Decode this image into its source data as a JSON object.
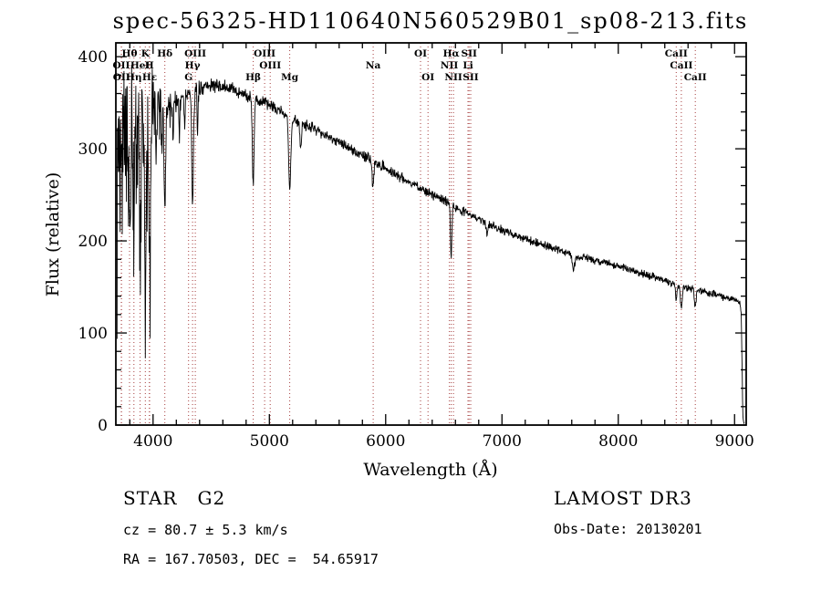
{
  "annotations": {
    "class_label": "STAR   G2",
    "cz": "cz = 80.7 ± 5.3 km/s",
    "radec": "RA = 167.70503, DEC =  54.65917",
    "survey": "LAMOST DR3",
    "obs_date": "Obs-Date: 20130201"
  },
  "chart_data": {
    "type": "line",
    "title": "spec-56325-HD110640N560529B01_sp08-213.fits",
    "xlabel": "Wavelength (Å)",
    "ylabel": "Flux (relative)",
    "xlim": [
      3680,
      9100
    ],
    "ylim": [
      0,
      415
    ],
    "xticks": [
      4000,
      5000,
      6000,
      7000,
      8000,
      9000
    ],
    "yticks": [
      0,
      100,
      200,
      300,
      400
    ],
    "x_minor_step": 200,
    "y_minor_step": 20,
    "grid": false,
    "line_color": "#000000",
    "marker_color": "#a63d3d",
    "continuum": [
      [
        3690,
        300
      ],
      [
        3720,
        315
      ],
      [
        3760,
        330
      ],
      [
        3800,
        332
      ],
      [
        3850,
        336
      ],
      [
        3900,
        340
      ],
      [
        3950,
        342
      ],
      [
        4000,
        346
      ],
      [
        4050,
        350
      ],
      [
        4100,
        352
      ],
      [
        4150,
        352
      ],
      [
        4200,
        354
      ],
      [
        4250,
        357
      ],
      [
        4300,
        359
      ],
      [
        4350,
        362
      ],
      [
        4400,
        366
      ],
      [
        4450,
        368
      ],
      [
        4500,
        369
      ],
      [
        4550,
        368
      ],
      [
        4600,
        367
      ],
      [
        4650,
        366
      ],
      [
        4700,
        364
      ],
      [
        4750,
        361
      ],
      [
        4800,
        358
      ],
      [
        4850,
        356
      ],
      [
        4900,
        352
      ],
      [
        4950,
        350
      ],
      [
        5000,
        348
      ],
      [
        5050,
        345
      ],
      [
        5100,
        341
      ],
      [
        5150,
        336
      ],
      [
        5200,
        331
      ],
      [
        5250,
        329
      ],
      [
        5300,
        327
      ],
      [
        5350,
        324
      ],
      [
        5400,
        321
      ],
      [
        5450,
        318
      ],
      [
        5500,
        314
      ],
      [
        5550,
        311
      ],
      [
        5600,
        307
      ],
      [
        5650,
        303
      ],
      [
        5700,
        299
      ],
      [
        5750,
        296
      ],
      [
        5800,
        293
      ],
      [
        5850,
        290
      ],
      [
        5900,
        287
      ],
      [
        5950,
        283
      ],
      [
        6000,
        279
      ],
      [
        6050,
        275
      ],
      [
        6100,
        271
      ],
      [
        6150,
        268
      ],
      [
        6200,
        264
      ],
      [
        6250,
        261
      ],
      [
        6300,
        257
      ],
      [
        6350,
        253
      ],
      [
        6400,
        250
      ],
      [
        6450,
        247
      ],
      [
        6500,
        244
      ],
      [
        6550,
        241
      ],
      [
        6600,
        237
      ],
      [
        6650,
        233
      ],
      [
        6700,
        230
      ],
      [
        6750,
        227
      ],
      [
        6800,
        224
      ],
      [
        6850,
        221
      ],
      [
        6900,
        218
      ],
      [
        6950,
        215
      ],
      [
        7000,
        212
      ],
      [
        7100,
        207
      ],
      [
        7200,
        202
      ],
      [
        7300,
        198
      ],
      [
        7400,
        194
      ],
      [
        7500,
        190
      ],
      [
        7600,
        185
      ],
      [
        7700,
        182
      ],
      [
        7800,
        179
      ],
      [
        7900,
        176
      ],
      [
        8000,
        173
      ],
      [
        8100,
        169
      ],
      [
        8200,
        165
      ],
      [
        8300,
        161
      ],
      [
        8400,
        157
      ],
      [
        8500,
        153
      ],
      [
        8600,
        149
      ],
      [
        8700,
        146
      ],
      [
        8800,
        143
      ],
      [
        8900,
        139
      ],
      [
        9000,
        136
      ],
      [
        9045,
        133
      ],
      [
        9058,
        120
      ],
      [
        9070,
        15
      ],
      [
        9078,
        2
      ]
    ],
    "noise_envelope": [
      [
        3690,
        80
      ],
      [
        3780,
        80
      ],
      [
        3860,
        68
      ],
      [
        3940,
        55
      ],
      [
        4020,
        34
      ],
      [
        4080,
        22
      ],
      [
        4150,
        15
      ],
      [
        4250,
        11
      ],
      [
        4400,
        9
      ],
      [
        4700,
        7
      ],
      [
        5000,
        7
      ],
      [
        5500,
        6
      ],
      [
        6000,
        6
      ],
      [
        6500,
        5
      ],
      [
        7000,
        5
      ],
      [
        7500,
        4.5
      ],
      [
        8000,
        4.5
      ],
      [
        8600,
        4
      ],
      [
        9080,
        4
      ]
    ],
    "absorption_lines": [
      [
        3798,
        110,
        5
      ],
      [
        3835,
        140,
        5
      ],
      [
        3889,
        155,
        6
      ],
      [
        3933,
        205,
        7
      ],
      [
        3970,
        175,
        7
      ],
      [
        4026,
        55,
        5
      ],
      [
        4077,
        40,
        4
      ],
      [
        4101,
        120,
        7
      ],
      [
        4173,
        35,
        4
      ],
      [
        4226,
        45,
        4
      ],
      [
        4271,
        35,
        4
      ],
      [
        4340,
        125,
        7
      ],
      [
        4383,
        50,
        4
      ],
      [
        4861,
        95,
        7
      ],
      [
        5175,
        78,
        9
      ],
      [
        5270,
        30,
        6
      ],
      [
        5890,
        30,
        7
      ],
      [
        6563,
        55,
        6
      ],
      [
        6870,
        10,
        10
      ],
      [
        7615,
        13,
        12
      ],
      [
        8498,
        16,
        7
      ],
      [
        8542,
        24,
        8
      ],
      [
        8662,
        20,
        7
      ]
    ],
    "spectral_markers": [
      {
        "label": "Hθ",
        "x": 3798,
        "row": 0
      },
      {
        "label": "K",
        "x": 3933,
        "row": 0
      },
      {
        "label": "Hδ",
        "x": 4101,
        "row": 0
      },
      {
        "label": "OIII",
        "x": 4363,
        "row": 0
      },
      {
        "label": "OIII",
        "x": 4959,
        "row": 0
      },
      {
        "label": "OI",
        "x": 6300,
        "row": 0
      },
      {
        "label": "Hα",
        "x": 6563,
        "row": 0
      },
      {
        "label": "SII",
        "x": 6717,
        "row": 0
      },
      {
        "label": "CaII",
        "x": 8498,
        "row": 0
      },
      {
        "label": "OII",
        "x": 3727,
        "row": 1
      },
      {
        "label": "HeI",
        "x": 3889,
        "row": 1
      },
      {
        "label": "H",
        "x": 3968,
        "row": 1
      },
      {
        "label": "Hγ",
        "x": 4340,
        "row": 1
      },
      {
        "label": "OIII",
        "x": 5007,
        "row": 1
      },
      {
        "label": "Na",
        "x": 5893,
        "row": 1
      },
      {
        "label": "NII",
        "x": 6548,
        "row": 1
      },
      {
        "label": "Li",
        "x": 6708,
        "row": 1
      },
      {
        "label": "CaII",
        "x": 8542,
        "row": 1
      },
      {
        "label": "OII",
        "x": 3729,
        "row": 2
      },
      {
        "label": "Hη",
        "x": 3835,
        "row": 2
      },
      {
        "label": "Hε",
        "x": 3970,
        "row": 2
      },
      {
        "label": "G",
        "x": 4305,
        "row": 2
      },
      {
        "label": "Hβ",
        "x": 4861,
        "row": 2
      },
      {
        "label": "Mg",
        "x": 5175,
        "row": 2
      },
      {
        "label": "OI",
        "x": 6364,
        "row": 2
      },
      {
        "label": "NII",
        "x": 6583,
        "row": 2
      },
      {
        "label": "SII",
        "x": 6731,
        "row": 2
      },
      {
        "label": "CaII",
        "x": 8662,
        "row": 2
      }
    ]
  }
}
